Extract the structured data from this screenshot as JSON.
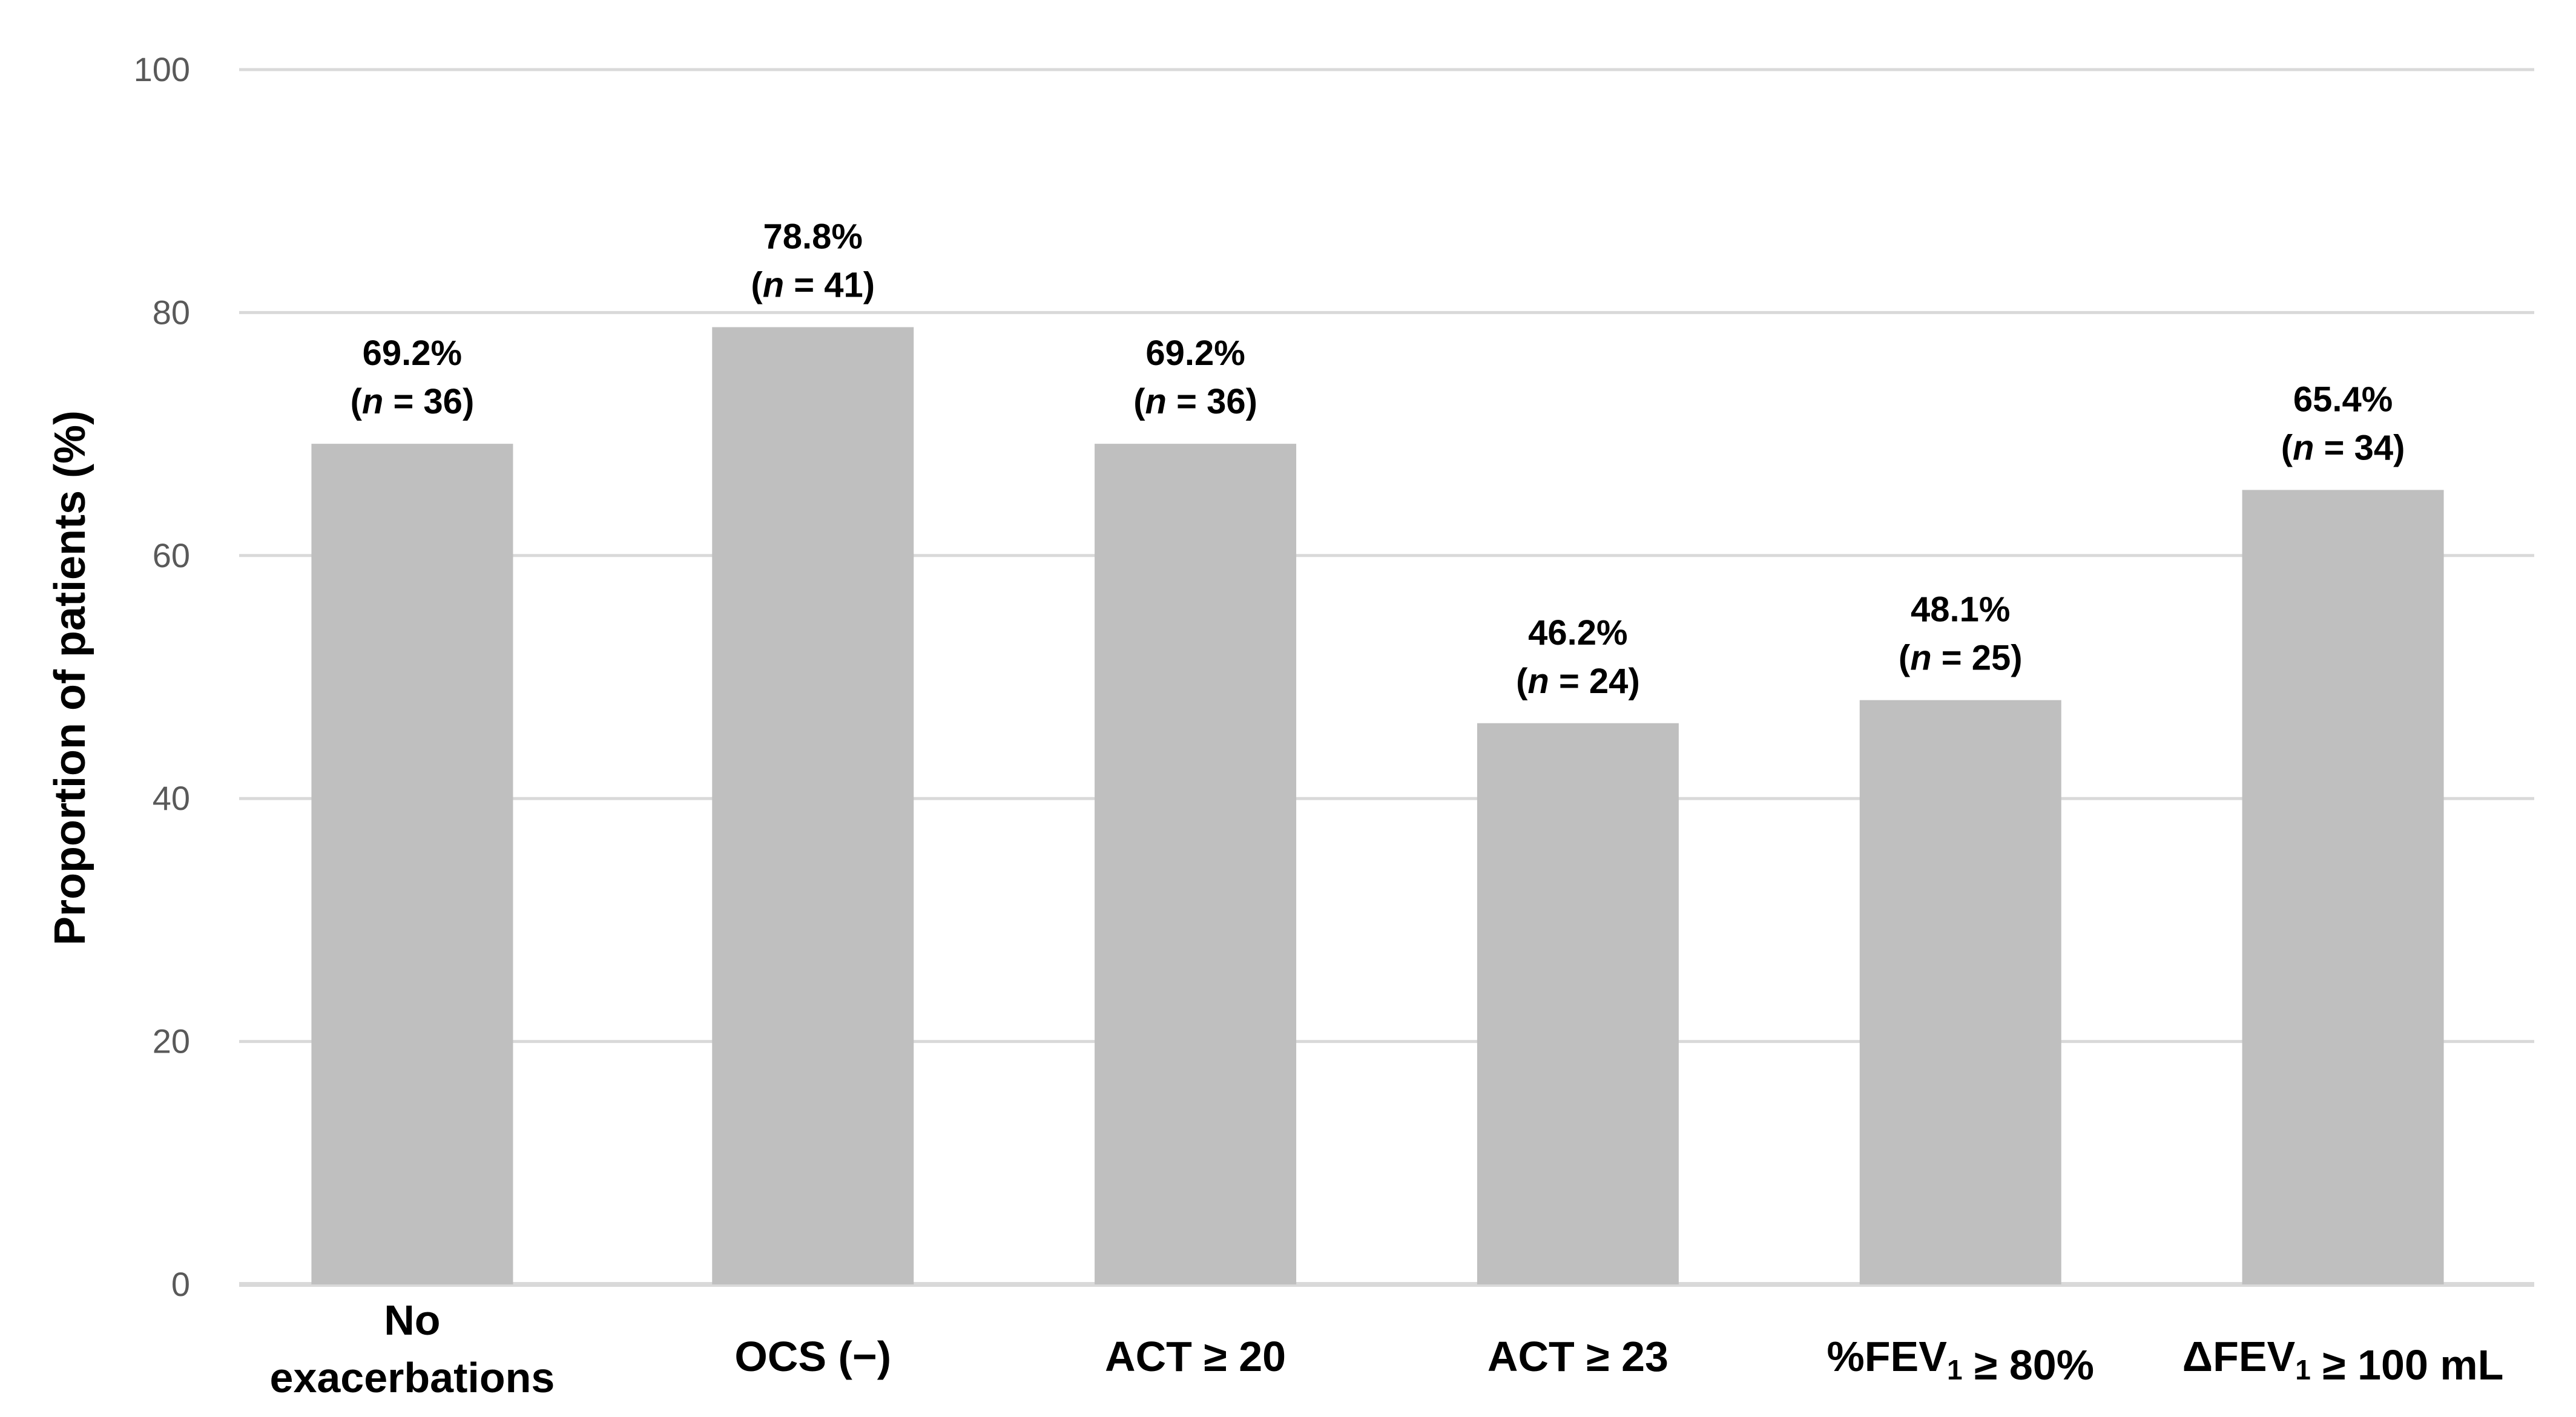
{
  "chart_data": {
    "type": "bar",
    "title": "",
    "xlabel": "",
    "ylabel": "Proportion of patients (%)",
    "ylim": [
      0,
      100
    ],
    "yticks": [
      0,
      20,
      40,
      60,
      80,
      100
    ],
    "grid": true,
    "categories": [
      [
        "No",
        "exacerbations"
      ],
      [
        "OCS (−)"
      ],
      [
        "ACT ≥ 20"
      ],
      [
        "ACT ≥ 23"
      ],
      [
        "%FEV1 ≥ 80%"
      ],
      [
        "ΔFEV1 ≥ 100 mL"
      ]
    ],
    "values": [
      69.2,
      78.8,
      69.2,
      46.2,
      48.1,
      65.4
    ],
    "value_labels": [
      "69.2%",
      "78.8%",
      "69.2%",
      "46.2%",
      "48.1%",
      "65.4%"
    ],
    "n": [
      36,
      41,
      36,
      24,
      25,
      34
    ],
    "colors": {
      "bar": "#bfbfbf",
      "grid": "#d9d9d9",
      "tick_text": "#595959"
    }
  }
}
